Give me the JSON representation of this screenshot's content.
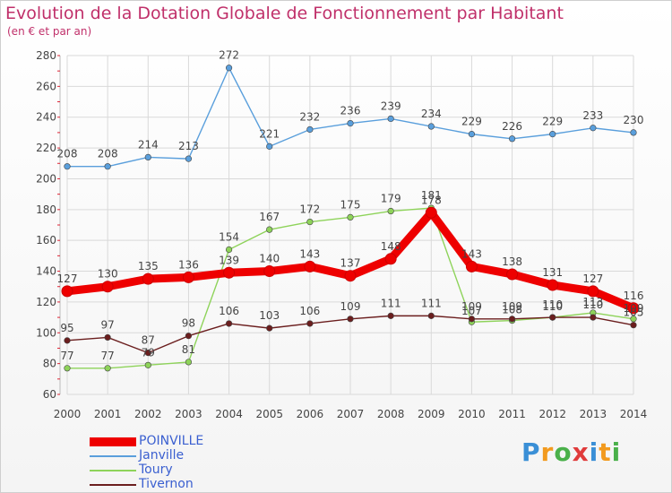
{
  "title": "Evolution de la Dotation Globale de Fonctionnement par Habitant",
  "subtitle": "(en € et par an)",
  "logo": {
    "text": "Proxiti",
    "colors": [
      "#3a8fd6",
      "#f29a1e",
      "#4ab04a",
      "#e03b3b"
    ]
  },
  "chart_data": {
    "type": "line",
    "x": [
      "2000",
      "2001",
      "2002",
      "2003",
      "2004",
      "2005",
      "2006",
      "2007",
      "2008",
      "2009",
      "2010",
      "2011",
      "2012",
      "2013",
      "2014"
    ],
    "ylim": [
      60,
      280
    ],
    "yticks": [
      60,
      80,
      100,
      120,
      140,
      160,
      180,
      200,
      220,
      240,
      260,
      280
    ],
    "grid": true,
    "legend_position": "bottom-left",
    "series": [
      {
        "name": "POINVILLE",
        "color": "#ee0000",
        "values": [
          127,
          130,
          135,
          136,
          139,
          140,
          143,
          137,
          148,
          178,
          143,
          138,
          131,
          127,
          116
        ],
        "labels": [
          "127",
          "130",
          "135",
          "136",
          "139",
          "140",
          "143",
          "137",
          "148",
          "178",
          "143",
          "138",
          "131",
          "127",
          "116"
        ]
      },
      {
        "name": "Janville",
        "color": "#5a9fdc",
        "values": [
          208,
          208,
          214,
          213,
          272,
          221,
          232,
          236,
          239,
          234,
          229,
          226,
          229,
          233,
          230
        ],
        "labels": [
          "208",
          "208",
          "214",
          "213",
          "272",
          "221",
          "232",
          "236",
          "239",
          "234",
          "229",
          "226",
          "229",
          "233",
          "230"
        ]
      },
      {
        "name": "Toury",
        "color": "#8ed35a",
        "values": [
          77,
          77,
          79,
          81,
          154,
          167,
          172,
          175,
          179,
          181,
          107,
          108,
          110,
          113,
          109
        ],
        "labels": [
          "77",
          "77",
          "79",
          "81",
          "154",
          "167",
          "172",
          "175",
          "179",
          "181",
          "107",
          "108",
          "110",
          "113",
          "109"
        ]
      },
      {
        "name": "Tivernon",
        "color": "#6b1e1e",
        "values": [
          95,
          97,
          87,
          98,
          106,
          103,
          106,
          109,
          111,
          111,
          109,
          109,
          110,
          110,
          105
        ],
        "labels": [
          "95",
          "97",
          "87",
          "98",
          "106",
          "103",
          "106",
          "109",
          "111",
          "111",
          "109",
          "109",
          "110",
          "110",
          "105"
        ]
      }
    ]
  }
}
